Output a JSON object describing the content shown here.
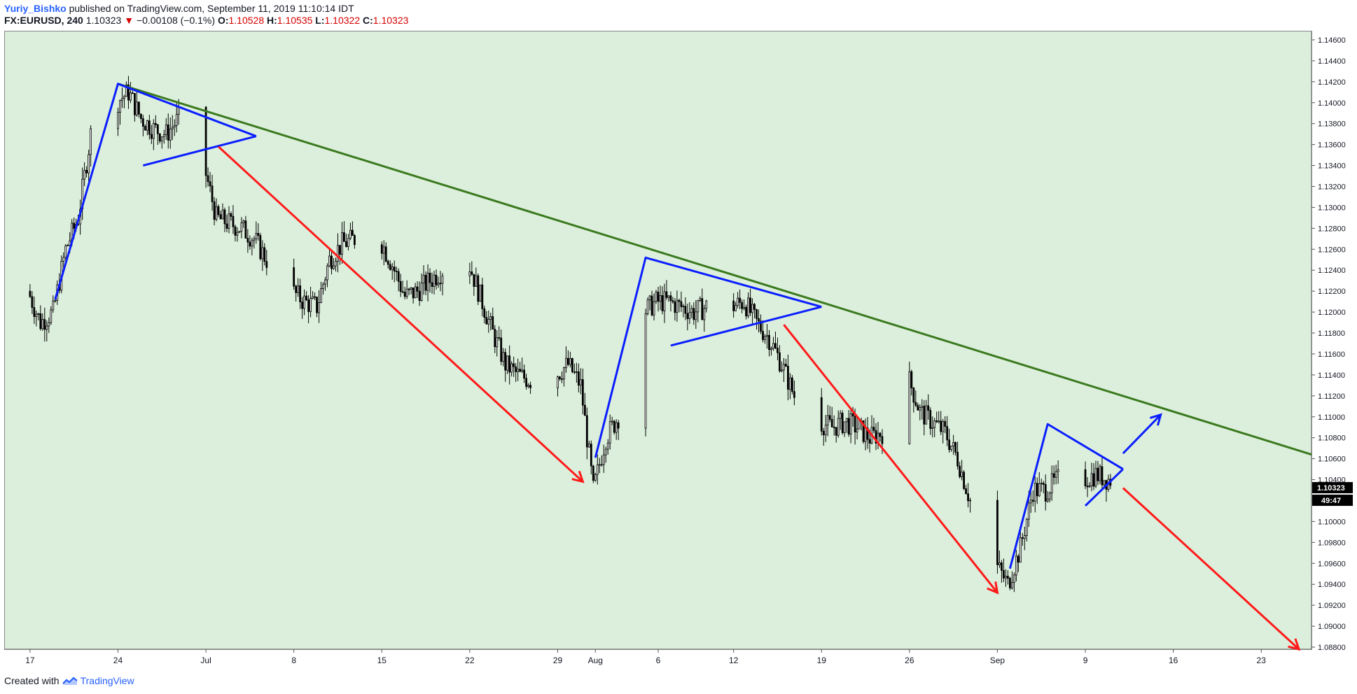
{
  "header": {
    "author": "Yuriy_Bishko",
    "published_text": "published on TradingView.com, September 11, 2019 11:10:14 IDT",
    "symbol": "FX:EURUSD, 240",
    "last": "1.10323",
    "change": "−0.00108 (−0.1%)",
    "o_label": "O:",
    "o_val": "1.10528",
    "h_label": "H:",
    "h_val": "1.10535",
    "l_label": "L:",
    "l_val": "1.10322",
    "c_label": "C:",
    "c_val": "1.10323"
  },
  "footer": {
    "created_with": "Created with",
    "brand": "TradingView"
  },
  "colors": {
    "plot_bg": "#dcefdc",
    "candle": "#000000",
    "triangle": "#0a1eff",
    "arrow_down": "#ff1a1a",
    "arrow_up": "#0a1eff",
    "trendline": "#3a7a1e",
    "price_label_bg": "#000000"
  },
  "chart_data": {
    "type": "candlestick",
    "symbol": "FX:EURUSD",
    "interval": "240",
    "ylim": [
      1.0878,
      1.1468
    ],
    "y_ticks": [
      1.088,
      1.09,
      1.092,
      1.094,
      1.096,
      1.098,
      1.1,
      1.102,
      1.104,
      1.106,
      1.108,
      1.11,
      1.112,
      1.114,
      1.116,
      1.118,
      1.12,
      1.122,
      1.124,
      1.126,
      1.128,
      1.13,
      1.132,
      1.134,
      1.136,
      1.138,
      1.14,
      1.142,
      1.144,
      1.146
    ],
    "y_tick_labels": [
      "1.08800",
      "1.09000",
      "1.09200",
      "1.09400",
      "1.09600",
      "1.09800",
      "1.10000",
      "1.10200",
      "1.10400",
      "1.10600",
      "1.10800",
      "1.11000",
      "1.11200",
      "1.11400",
      "1.11600",
      "1.11800",
      "1.12000",
      "1.12200",
      "1.12400",
      "1.12600",
      "1.12800",
      "1.13000",
      "1.13200",
      "1.13400",
      "1.13600",
      "1.13800",
      "1.14000",
      "1.14200",
      "1.14400",
      "1.14600"
    ],
    "x_range": [
      "2019-06-15",
      "2019-09-27"
    ],
    "x_ticks": [
      {
        "date": "2019-06-17",
        "label": "17"
      },
      {
        "date": "2019-06-24",
        "label": "24"
      },
      {
        "date": "2019-07-01",
        "label": "Jul"
      },
      {
        "date": "2019-07-08",
        "label": "8"
      },
      {
        "date": "2019-07-15",
        "label": "15"
      },
      {
        "date": "2019-07-22",
        "label": "22"
      },
      {
        "date": "2019-07-29",
        "label": "29"
      },
      {
        "date": "2019-08-01",
        "label": "Aug"
      },
      {
        "date": "2019-08-06",
        "label": "6"
      },
      {
        "date": "2019-08-12",
        "label": "12"
      },
      {
        "date": "2019-08-19",
        "label": "19"
      },
      {
        "date": "2019-08-26",
        "label": "26"
      },
      {
        "date": "2019-09-02",
        "label": "Sep"
      },
      {
        "date": "2019-09-09",
        "label": "9"
      },
      {
        "date": "2019-09-16",
        "label": "16"
      },
      {
        "date": "2019-09-23",
        "label": "23"
      }
    ],
    "price_path": [
      [
        "2019-06-17",
        1.122
      ],
      [
        "2019-06-18",
        1.119
      ],
      [
        "2019-06-19",
        1.12
      ],
      [
        "2019-06-20",
        1.126
      ],
      [
        "2019-06-21",
        1.129
      ],
      [
        "2019-06-22",
        1.137
      ],
      [
        "2019-06-23",
        1.139
      ],
      [
        "2019-06-24",
        1.14
      ],
      [
        "2019-06-25",
        1.141
      ],
      [
        "2019-06-26",
        1.1385
      ],
      [
        "2019-06-27",
        1.1375
      ],
      [
        "2019-06-28",
        1.137
      ],
      [
        "2019-06-29",
        1.1385
      ],
      [
        "2019-06-30",
        1.138
      ],
      [
        "2019-07-01",
        1.134
      ],
      [
        "2019-07-02",
        1.129
      ],
      [
        "2019-07-03",
        1.1285
      ],
      [
        "2019-07-04",
        1.128
      ],
      [
        "2019-07-05",
        1.127
      ],
      [
        "2019-07-06",
        1.125
      ],
      [
        "2019-07-07",
        1.1235
      ],
      [
        "2019-07-08",
        1.122
      ],
      [
        "2019-07-09",
        1.121
      ],
      [
        "2019-07-10",
        1.1205
      ],
      [
        "2019-07-11",
        1.125
      ],
      [
        "2019-07-12",
        1.1265
      ],
      [
        "2019-07-13",
        1.127
      ],
      [
        "2019-07-14",
        1.1268
      ],
      [
        "2019-07-15",
        1.127
      ],
      [
        "2019-07-16",
        1.1245
      ],
      [
        "2019-07-17",
        1.1215
      ],
      [
        "2019-07-18",
        1.122
      ],
      [
        "2019-07-19",
        1.123
      ],
      [
        "2019-07-20",
        1.124
      ],
      [
        "2019-07-21",
        1.126
      ],
      [
        "2019-07-22",
        1.125
      ],
      [
        "2019-07-23",
        1.1215
      ],
      [
        "2019-07-24",
        1.118
      ],
      [
        "2019-07-25",
        1.115
      ],
      [
        "2019-07-26",
        1.114
      ],
      [
        "2019-07-27",
        1.1135
      ],
      [
        "2019-07-28",
        1.113
      ],
      [
        "2019-07-29",
        1.114
      ],
      [
        "2019-07-30",
        1.115
      ],
      [
        "2019-07-31",
        1.113
      ],
      [
        "2019-08-01",
        1.103
      ],
      [
        "2019-08-02",
        1.108
      ],
      [
        "2019-08-03",
        1.11
      ],
      [
        "2019-08-04",
        1.115
      ],
      [
        "2019-08-05",
        1.12
      ],
      [
        "2019-08-06",
        1.121
      ],
      [
        "2019-08-07",
        1.121
      ],
      [
        "2019-08-08",
        1.1205
      ],
      [
        "2019-08-09",
        1.12
      ],
      [
        "2019-08-10",
        1.1205
      ],
      [
        "2019-08-11",
        1.12
      ],
      [
        "2019-08-12",
        1.1205
      ],
      [
        "2019-08-13",
        1.121
      ],
      [
        "2019-08-14",
        1.119
      ],
      [
        "2019-08-15",
        1.1175
      ],
      [
        "2019-08-16",
        1.115
      ],
      [
        "2019-08-17",
        1.112
      ],
      [
        "2019-08-18",
        1.11
      ],
      [
        "2019-08-19",
        1.1095
      ],
      [
        "2019-08-20",
        1.109
      ],
      [
        "2019-08-21",
        1.1095
      ],
      [
        "2019-08-22",
        1.109
      ],
      [
        "2019-08-23",
        1.108
      ],
      [
        "2019-08-24",
        1.1085
      ],
      [
        "2019-08-25",
        1.11
      ],
      [
        "2019-08-26",
        1.114
      ],
      [
        "2019-08-27",
        1.1105
      ],
      [
        "2019-08-28",
        1.1095
      ],
      [
        "2019-08-29",
        1.1085
      ],
      [
        "2019-08-30",
        1.106
      ],
      [
        "2019-08-31",
        1.102
      ],
      [
        "2019-09-01",
        1.098
      ],
      [
        "2019-09-02",
        1.096
      ],
      [
        "2019-09-03",
        1.094
      ],
      [
        "2019-09-04",
        1.0975
      ],
      [
        "2019-09-05",
        1.103
      ],
      [
        "2019-09-06",
        1.103
      ],
      [
        "2019-09-07",
        1.104
      ],
      [
        "2019-09-08",
        1.1045
      ],
      [
        "2019-09-09",
        1.104
      ],
      [
        "2019-09-10",
        1.1045
      ],
      [
        "2019-09-11",
        1.104
      ]
    ],
    "annotations": {
      "trendline": {
        "from": [
          "2019-06-24",
          1.1418
        ],
        "to": [
          "2019-09-27",
          1.1064
        ]
      },
      "triangles": [
        {
          "from": [
            "2019-06-19",
            1.1212
          ],
          "peak": [
            "2019-06-24",
            1.1418
          ],
          "apex": [
            "2019-07-05",
            1.1368
          ],
          "lower": [
            "2019-06-26",
            1.134
          ],
          "upper": [
            "2019-06-25",
            1.1416
          ]
        },
        {
          "from": [
            "2019-08-01",
            1.1061
          ],
          "peak": [
            "2019-08-05",
            1.1252
          ],
          "apex": [
            "2019-08-19",
            1.1205
          ],
          "lower": [
            "2019-08-07",
            1.1168
          ],
          "upper": [
            "2019-08-15",
            1.1222
          ]
        },
        {
          "from": [
            "2019-09-03",
            1.0955
          ],
          "peak": [
            "2019-09-06",
            1.1093
          ],
          "apex": [
            "2019-09-12",
            1.105
          ],
          "lower": [
            "2019-09-09",
            1.1015
          ],
          "upper": [
            "2019-09-12",
            1.105
          ]
        }
      ],
      "down_arrows": [
        {
          "from": [
            "2019-07-02",
            1.1358
          ],
          "to": [
            "2019-07-31",
            1.1038
          ]
        },
        {
          "from": [
            "2019-08-16",
            1.1188
          ],
          "to": [
            "2019-09-02",
            1.0932
          ]
        },
        {
          "from": [
            "2019-09-12",
            1.1032
          ],
          "to": [
            "2019-09-26",
            1.0878
          ]
        }
      ],
      "up_arrows": [
        {
          "from": [
            "2019-09-12",
            1.1065
          ],
          "to": [
            "2019-09-15",
            1.1102
          ]
        }
      ]
    },
    "last_price_label": "1.10323",
    "countdown_label": "49:47"
  }
}
